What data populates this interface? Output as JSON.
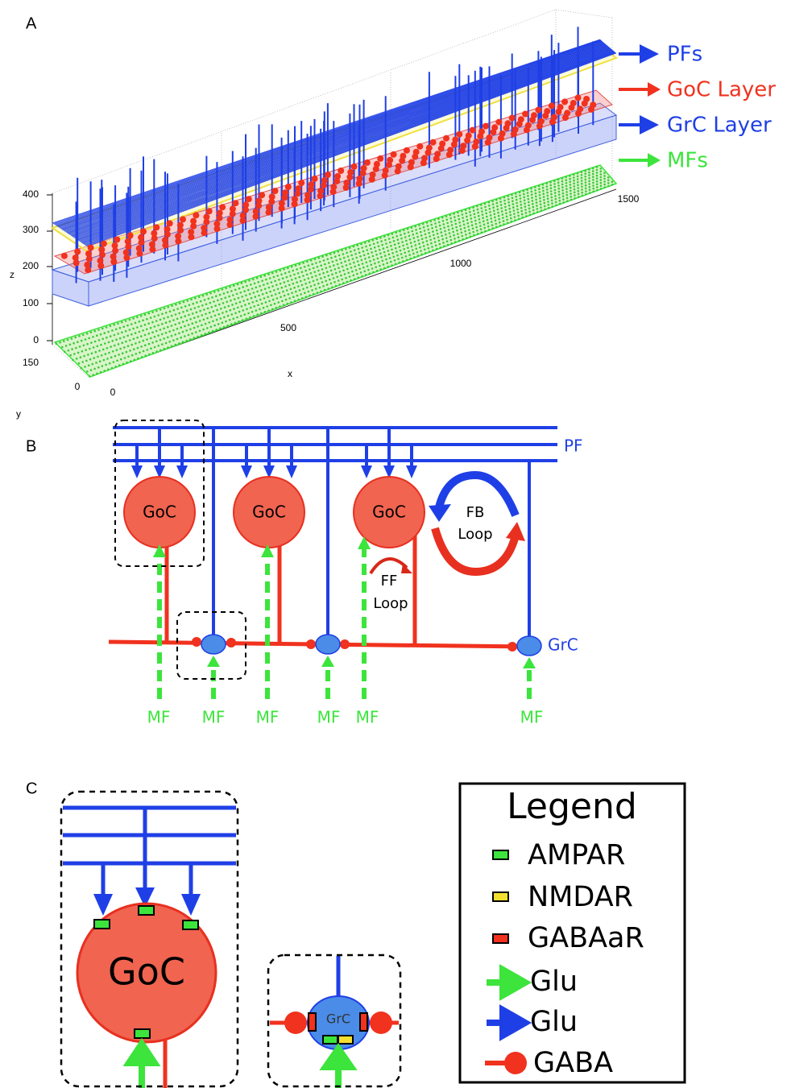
{
  "panel_a": {
    "label": "A",
    "z_axis": {
      "title": "z",
      "ticks": [
        "400",
        "300",
        "200",
        "100",
        "0"
      ]
    },
    "y_axis": {
      "title": "y",
      "ticks": [
        "150",
        "0"
      ]
    },
    "x_axis": {
      "title": "x",
      "ticks": [
        "0",
        "500",
        "1000",
        "1500"
      ]
    },
    "legend": [
      "PFs",
      "GoC Layer",
      "GrC Layer",
      "MFs"
    ]
  },
  "panel_b": {
    "label": "B",
    "goc": [
      "GoC",
      "GoC",
      "GoC"
    ],
    "pf": "PF",
    "grc": "GrC",
    "fb_loop": [
      "FB",
      "Loop"
    ],
    "ff_loop": [
      "FF",
      "Loop"
    ],
    "mf": [
      "MF",
      "MF",
      "MF",
      "MF",
      "MF",
      "MF"
    ]
  },
  "panel_c": {
    "label": "C",
    "goc": "GoC",
    "grc": "GrC",
    "legend": {
      "title": "Legend",
      "items": [
        "AMPAR",
        "NMDAR",
        "GABAaR",
        "Glu",
        "Glu",
        "GABA"
      ]
    }
  }
}
